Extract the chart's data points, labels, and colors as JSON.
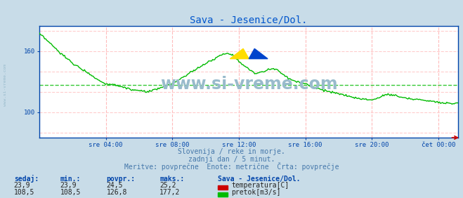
{
  "title": "Sava - Jesenice/Dol.",
  "title_color": "#0055cc",
  "bg_color": "#c8dce8",
  "plot_bg_color": "#ffffff",
  "x_tick_labels": [
    "sre 04:00",
    "sre 08:00",
    "sre 12:00",
    "sre 16:00",
    "sre 20:00",
    "čet 00:00"
  ],
  "x_tick_positions": [
    4,
    8,
    12,
    16,
    20,
    24
  ],
  "x_min": 0,
  "x_max": 25.2,
  "y_min": 75,
  "y_max": 185,
  "y_ticks": [
    100,
    160
  ],
  "pretok_avg": 126.8,
  "subtitle1": "Slovenija / reke in morje.",
  "subtitle2": "zadnji dan / 5 minut.",
  "subtitle3": "Meritve: povprečne  Enote: metrične  Črta: povprečje",
  "subtitle_color": "#4477aa",
  "watermark_text": "www.si-vreme.com",
  "watermark_color": "#99bbcc",
  "label_sedaj": "sedaj:",
  "label_min": "min.:",
  "label_povpr": "povpr.:",
  "label_maks": "maks.:",
  "label_station": "Sava - Jesenice/Dol.",
  "temp_sedaj": "23,9",
  "temp_min": "23,9",
  "temp_povpr": "24,5",
  "temp_maks": "25,2",
  "flow_sedaj": "108,5",
  "flow_min": "108,5",
  "flow_povpr": "126,8",
  "flow_maks": "177,2",
  "temp_label": "temperatura[C]",
  "flow_label": "pretok[m3/s]",
  "temp_color": "#cc0000",
  "flow_color": "#00bb00",
  "axis_color": "#0044aa",
  "tick_color": "#0044aa",
  "arrow_color": "#cc0000",
  "grid_v_color": "#ffbbbb",
  "grid_h_color": "#ffcccc"
}
